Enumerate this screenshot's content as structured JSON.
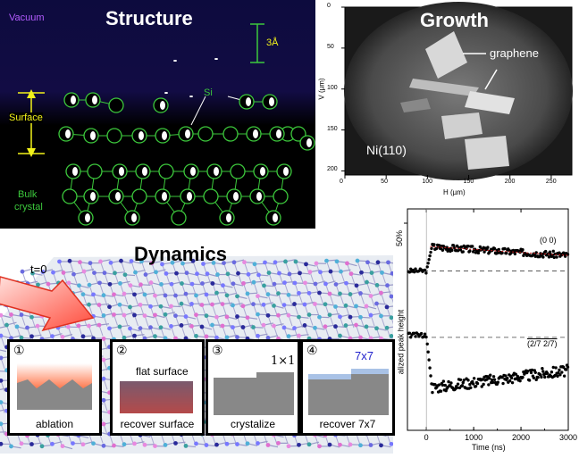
{
  "structure": {
    "title": "Structure",
    "vacuum_label": "Vacuum",
    "scale_label": "3Å",
    "si_label": "Si",
    "surface_label": "Surface",
    "bulk_label": "Bulk",
    "bulk_label2": "crystal",
    "colors": {
      "title": "#ffffff",
      "vacuum": "#b45cff",
      "labels": "#f2f21a",
      "green": "#3cc83c"
    }
  },
  "growth": {
    "title": "Growth",
    "graphene_label": "graphene",
    "substrate_label": "Ni(110)",
    "ylabel": "V (µm)",
    "xlabel": "H (µm)",
    "x_ticks": [
      "0",
      "50",
      "100",
      "150",
      "200",
      "250"
    ],
    "y_ticks": [
      "0",
      "50",
      "100",
      "150",
      "200"
    ]
  },
  "dynamics": {
    "title": "Dynamics",
    "t0_label": "t=0",
    "steps": [
      {
        "num": "①",
        "caption": "ablation"
      },
      {
        "num": "②",
        "caption": "recover surface",
        "extra": "flat surface"
      },
      {
        "num": "③",
        "caption": "crystalize",
        "extra": "1×1"
      },
      {
        "num": "④",
        "caption": "recover 7x7",
        "extra": "7x7"
      }
    ]
  },
  "chart_data": {
    "type": "scatter",
    "title": "",
    "xlabel": "Time (ns)",
    "ylabel": "alized peak height",
    "y_marker": "50%",
    "xlim": [
      -400,
      3000
    ],
    "x_ticks": [
      0,
      1000,
      2000,
      3000
    ],
    "series": [
      {
        "name": "(0 0)",
        "baseline": 0.72,
        "before": 0.72,
        "after_peak": 0.83,
        "after_end": 0.79
      },
      {
        "name": "(2/7 2/7)",
        "baseline": 0.42,
        "before": 0.43,
        "after_min": 0.19,
        "after_end": 0.27
      }
    ]
  }
}
